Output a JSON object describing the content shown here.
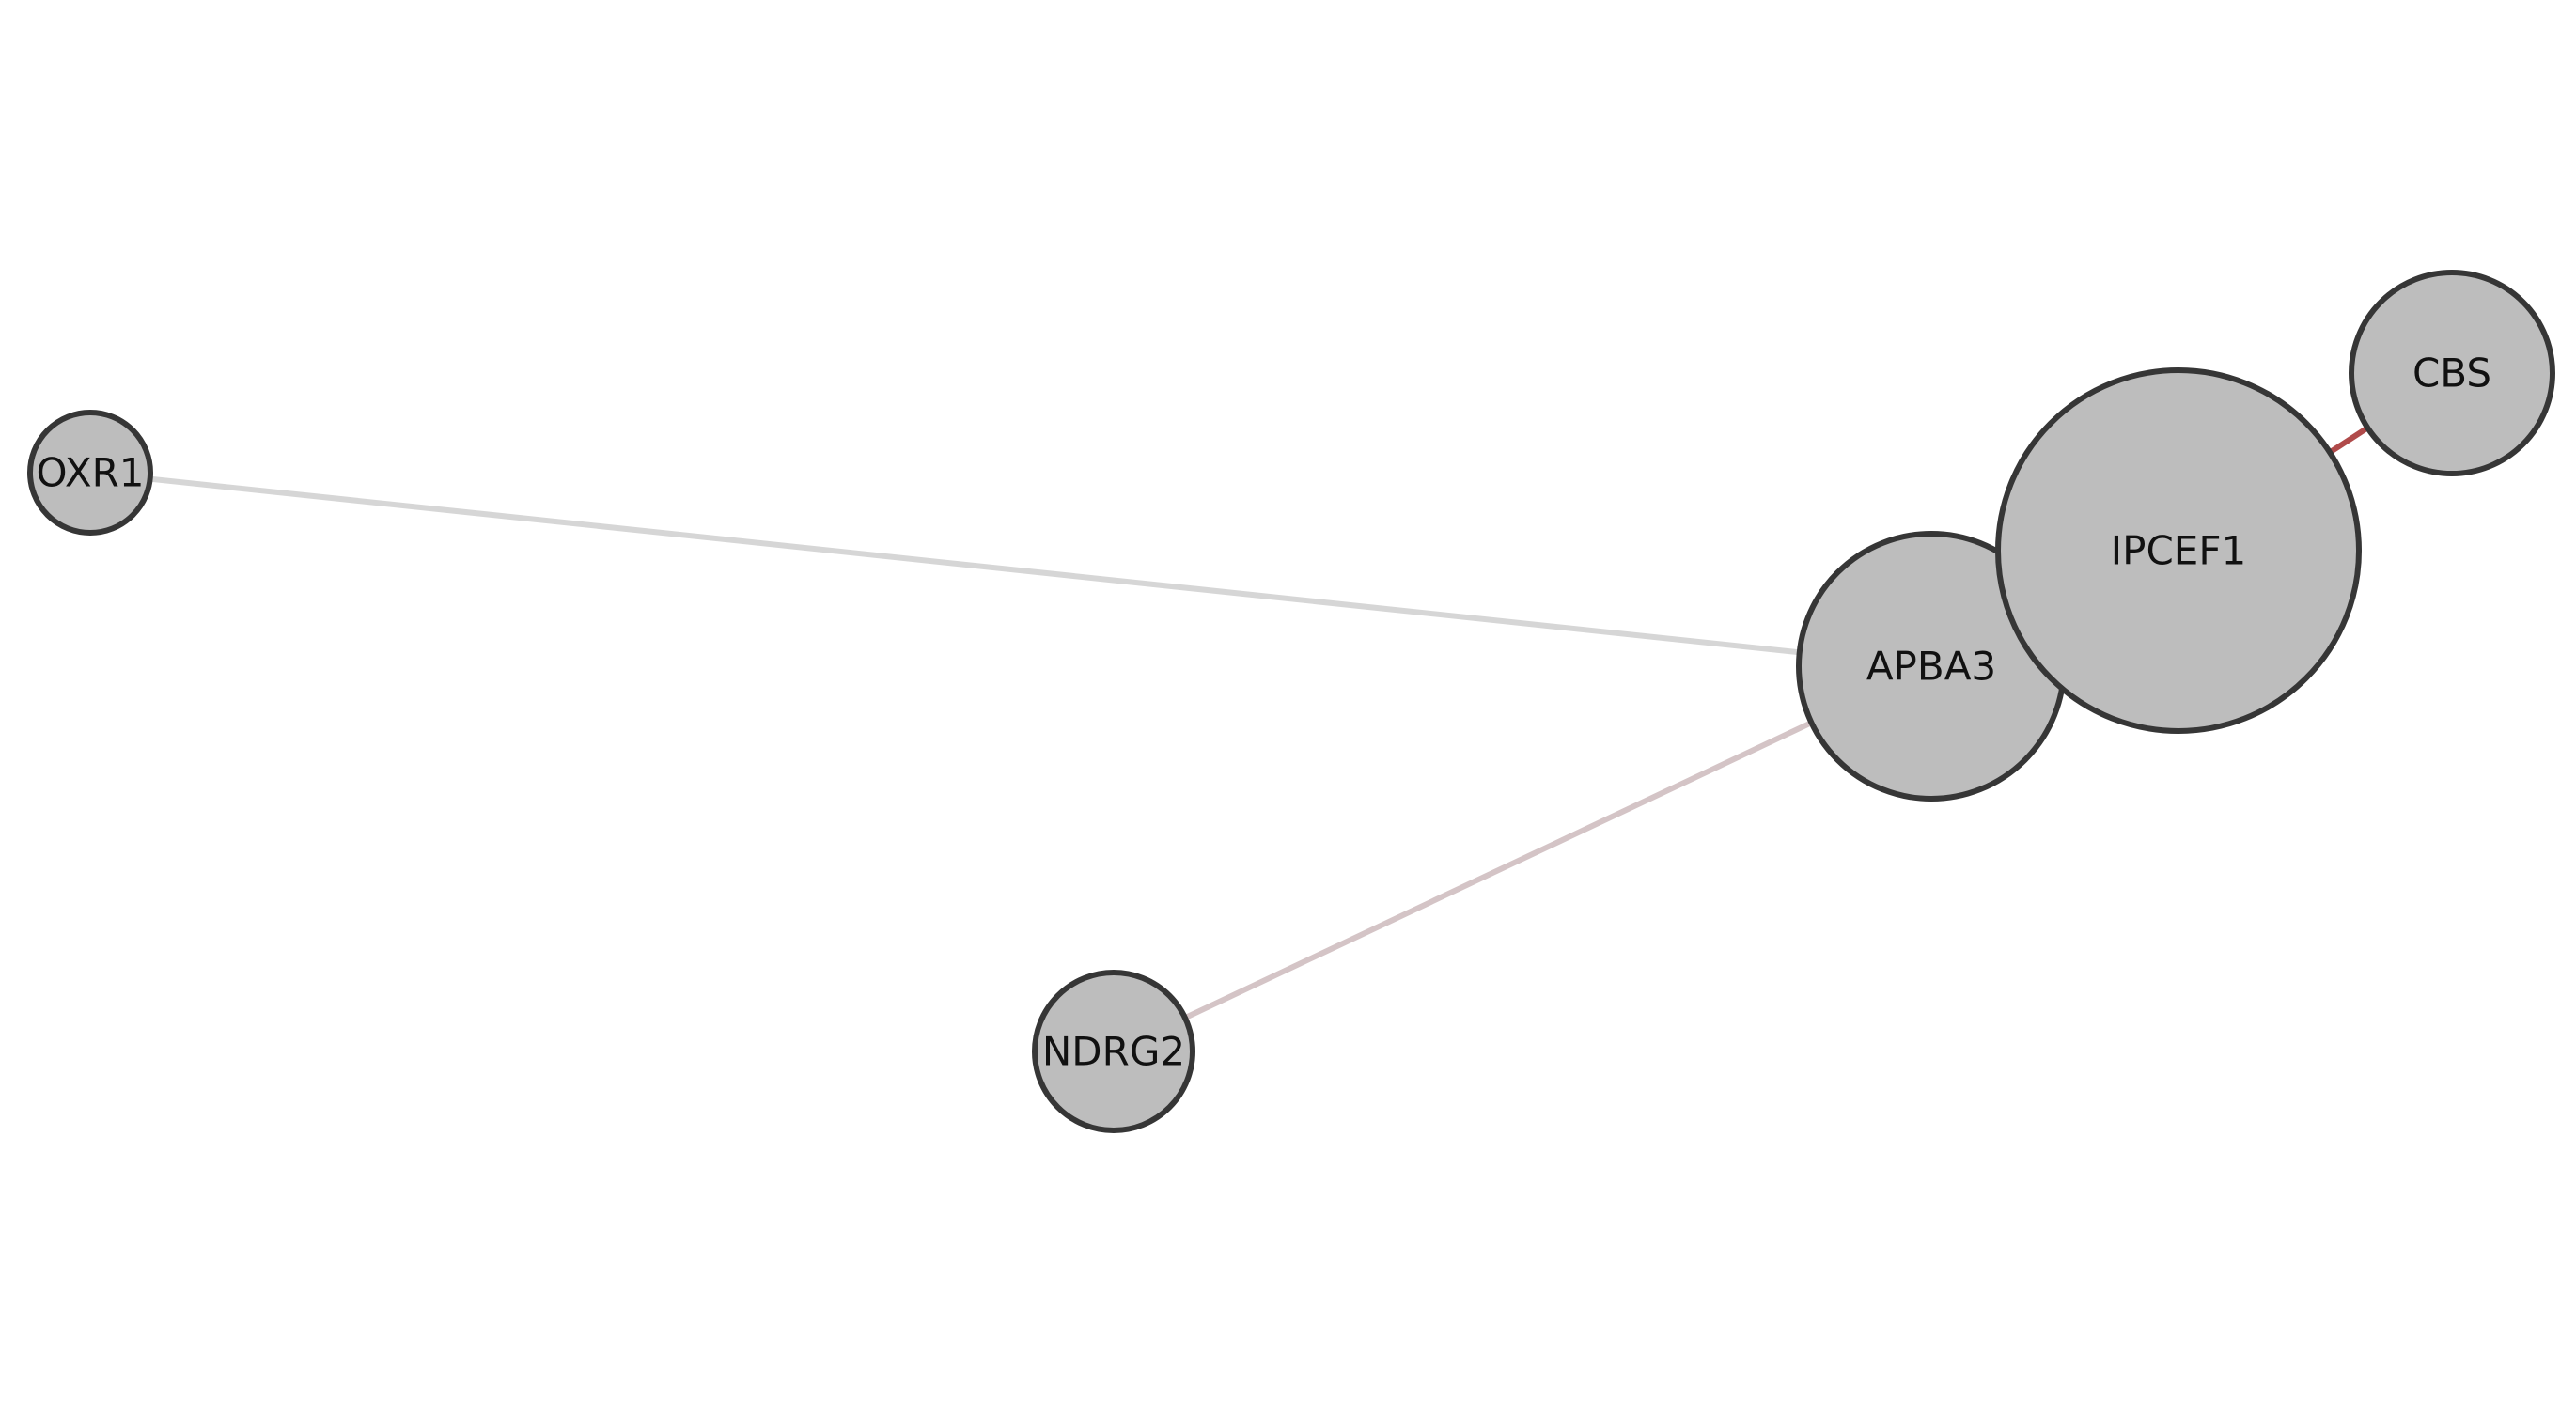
{
  "graph": {
    "nodes": [
      {
        "id": "oxr1",
        "label": "OXR1"
      },
      {
        "id": "ndrg2",
        "label": "NDRG2"
      },
      {
        "id": "apba3",
        "label": "APBA3"
      },
      {
        "id": "ipcef1",
        "label": "IPCEF1"
      },
      {
        "id": "cbs",
        "label": "CBS"
      }
    ],
    "edges": [
      {
        "source": "oxr1",
        "target": "apba3",
        "color": "#d6d6d6"
      },
      {
        "source": "ndrg2",
        "target": "apba3",
        "color": "#d4c4c6"
      },
      {
        "source": "apba3",
        "target": "ipcef1",
        "color": "#363636"
      },
      {
        "source": "ipcef1",
        "target": "cbs",
        "color": "#b04a4a"
      }
    ]
  },
  "colors": {
    "node_fill": "#bdbdbd",
    "node_stroke": "#363636",
    "label": "#111111",
    "background": "#ffffff"
  }
}
